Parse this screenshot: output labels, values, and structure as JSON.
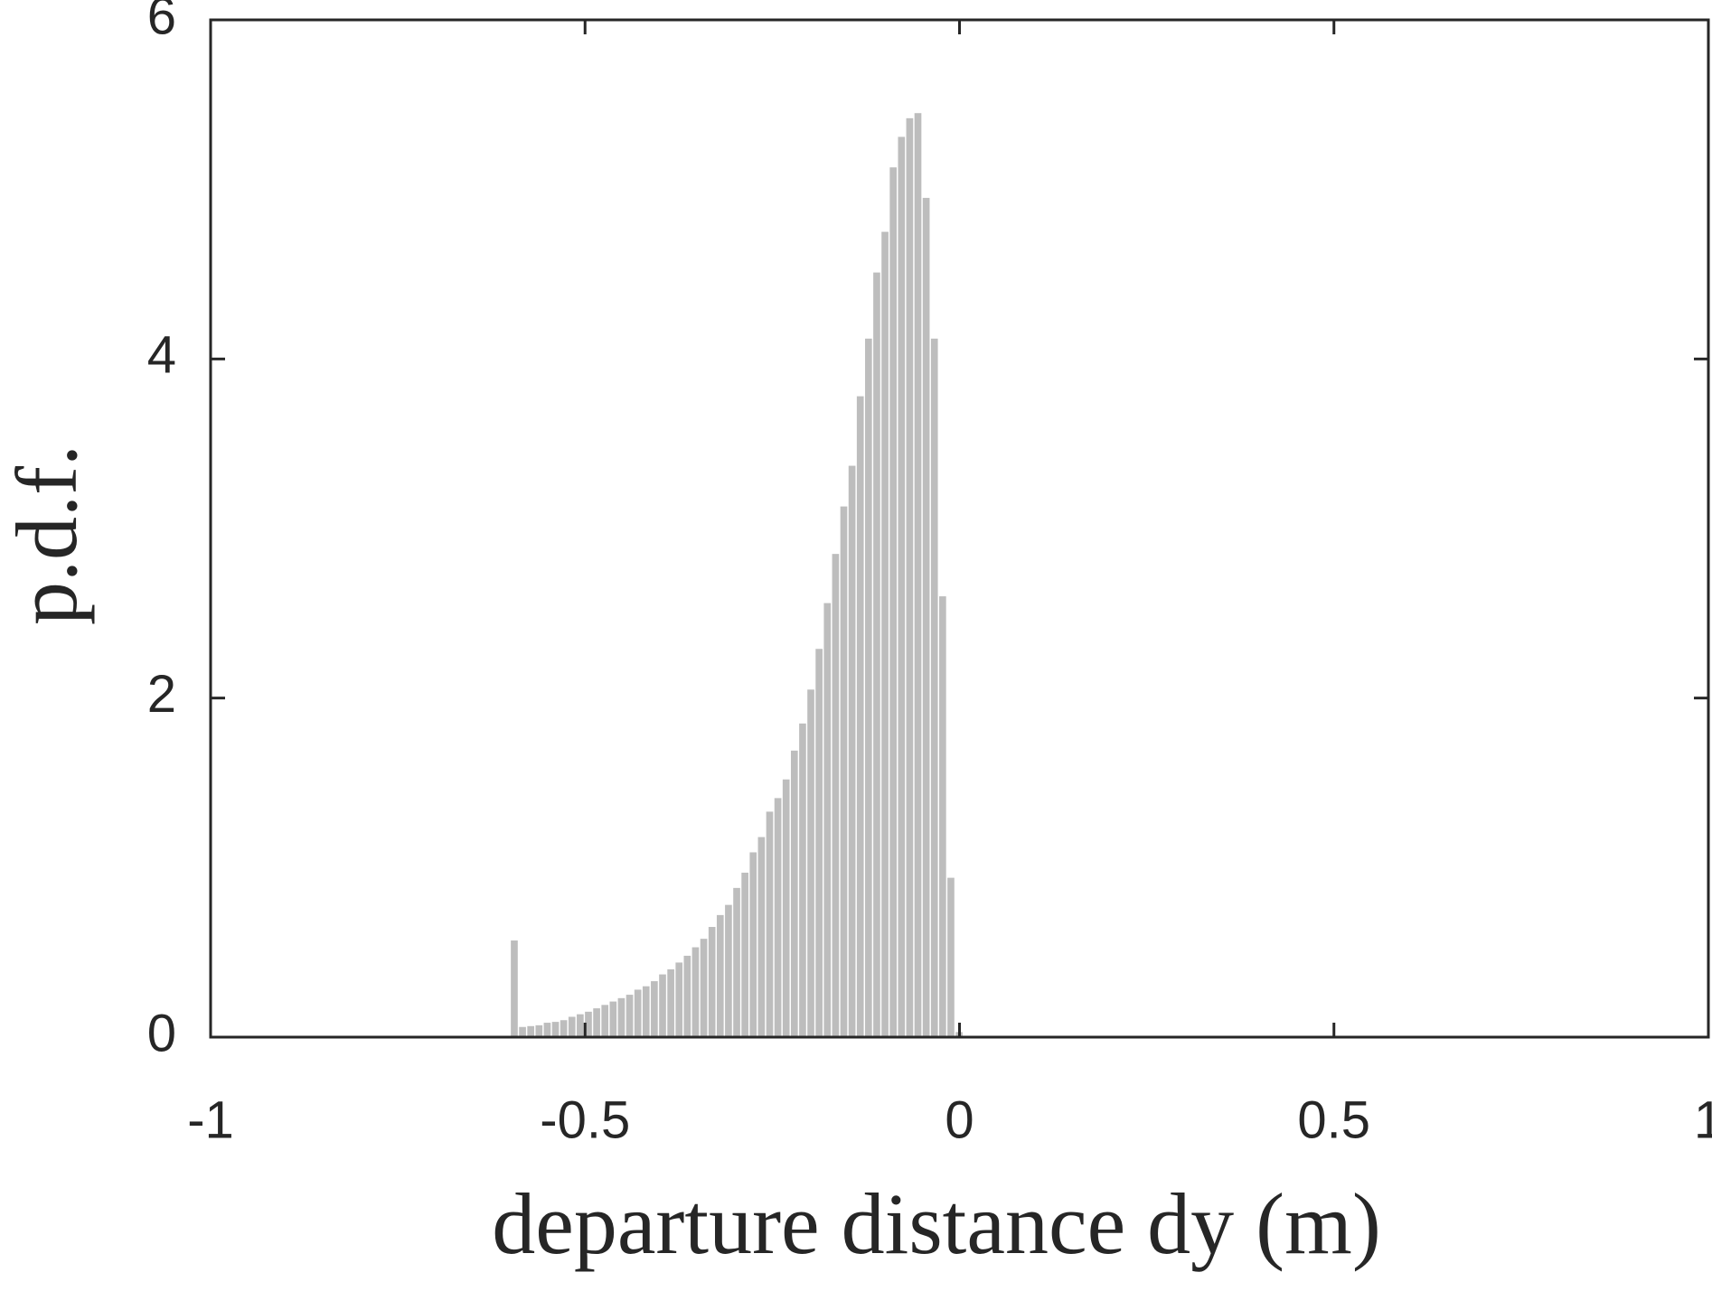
{
  "chart_data": {
    "type": "histogram",
    "xlabel": "departure distance dy (m)",
    "ylabel": "p.d.f.",
    "bins": [
      -0.6,
      -0.589,
      -0.578,
      -0.567,
      -0.556,
      -0.545,
      -0.534,
      -0.523,
      -0.512,
      -0.501,
      -0.49,
      -0.479,
      -0.468,
      -0.457,
      -0.446,
      -0.435,
      -0.424,
      -0.413,
      -0.402,
      -0.391,
      -0.38,
      -0.369,
      -0.358,
      -0.347,
      -0.336,
      -0.325,
      -0.314,
      -0.303,
      -0.292,
      -0.281,
      -0.27,
      -0.259,
      -0.248,
      -0.237,
      -0.226,
      -0.215,
      -0.204,
      -0.193,
      -0.182,
      -0.171,
      -0.16,
      -0.149,
      -0.138,
      -0.127,
      -0.116,
      -0.105,
      -0.094,
      -0.083,
      -0.072,
      -0.061,
      -0.05,
      -0.039,
      -0.028,
      -0.017,
      -0.006,
      0.005
    ],
    "values": [
      0.57,
      0.06,
      0.065,
      0.07,
      0.085,
      0.09,
      0.1,
      0.12,
      0.135,
      0.15,
      0.17,
      0.19,
      0.21,
      0.23,
      0.25,
      0.28,
      0.3,
      0.33,
      0.37,
      0.4,
      0.44,
      0.48,
      0.53,
      0.58,
      0.65,
      0.72,
      0.78,
      0.88,
      0.97,
      1.09,
      1.18,
      1.33,
      1.41,
      1.52,
      1.69,
      1.85,
      2.05,
      2.29,
      2.56,
      2.85,
      3.13,
      3.37,
      3.78,
      4.12,
      4.51,
      4.75,
      5.13,
      5.31,
      5.42,
      5.45,
      4.95,
      4.12,
      2.6,
      0.94,
      0.03
    ],
    "color": "#bdbdbd",
    "xlim": [
      -1,
      1
    ],
    "xticks": [
      -1,
      -0.5,
      0,
      0.5,
      1
    ],
    "ylim": [
      0,
      6
    ],
    "yticks": [
      0,
      2,
      4,
      6
    ]
  }
}
